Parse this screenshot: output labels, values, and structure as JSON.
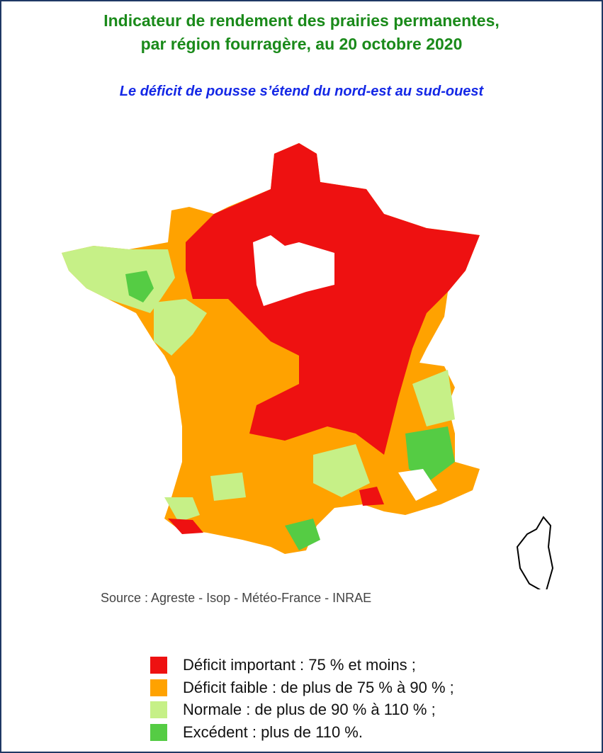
{
  "header": {
    "title": [
      "Indicateur de rendement des prairies permanentes,",
      "par région fourragère, au 20 octobre 2020"
    ],
    "subtitle": "Le déficit de pousse s’étend du nord-est au sud-ouest"
  },
  "source": "Source : Agreste - Isop - Météo-France - INRAE",
  "legend": [
    {
      "label": "Déficit important : 75 % et moins ;",
      "color": "#ee1111"
    },
    {
      "label": "Déficit faible : de plus de 75 % à 90 % ;",
      "color": "#ffa200"
    },
    {
      "label": "Normale : de plus de 90 % à 110 % ;",
      "color": "#c6f087"
    },
    {
      "label": "Excédent : plus de 110 %.",
      "color": "#55cc44"
    }
  ]
}
